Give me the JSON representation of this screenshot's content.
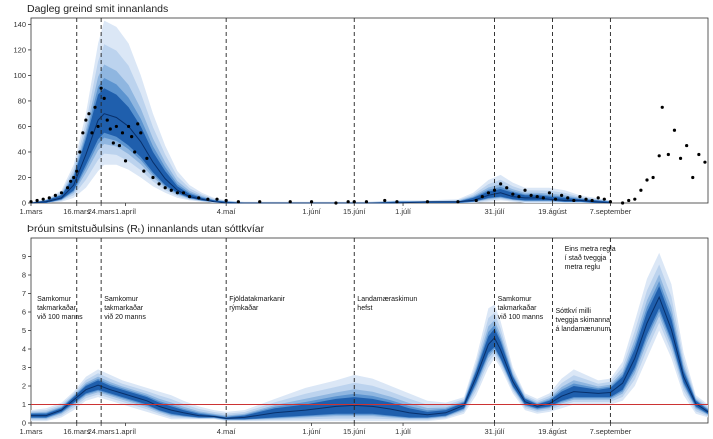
{
  "colors": {
    "band_outer": "#dbe7f6",
    "band_2": "#bcd3ee",
    "band_3": "#8fb6e0",
    "band_4": "#5b93cf",
    "band_inner": "#1f5fad",
    "median": "#08306b",
    "points": "#000000",
    "reference_line": "#cc3333",
    "event_lines": "#222222"
  },
  "chart_data": [
    {
      "type": "area",
      "title": "Dagleg greind smit innanlands",
      "xlabel": "",
      "ylabel": "",
      "ylim": [
        0,
        145
      ],
      "yticks": [
        0,
        20,
        40,
        60,
        80,
        100,
        120,
        140
      ],
      "x_range_days": [
        0,
        222
      ],
      "xticks": [
        {
          "day": 0,
          "label": "1.mars"
        },
        {
          "day": 15,
          "label": "16.mars"
        },
        {
          "day": 23,
          "label": "24.mars"
        },
        {
          "day": 31,
          "label": "1.apríl"
        },
        {
          "day": 64,
          "label": "4.maí"
        },
        {
          "day": 92,
          "label": "1.júní"
        },
        {
          "day": 106,
          "label": "15.júní"
        },
        {
          "day": 122,
          "label": "1.júlí"
        },
        {
          "day": 152,
          "label": "31.júlí"
        },
        {
          "day": 171,
          "label": "19.ágúst"
        },
        {
          "day": 190,
          "label": "7.september"
        }
      ],
      "event_lines_days": [
        15,
        23,
        64,
        106,
        152,
        171,
        190
      ],
      "grid": false,
      "series": [
        {
          "quantiles": "5-95",
          "x": [
            0,
            5,
            10,
            14,
            18,
            22,
            24,
            28,
            32,
            36,
            40,
            44,
            48,
            52,
            56,
            60,
            64,
            70,
            80,
            90,
            100,
            110,
            120,
            130,
            140,
            145,
            150,
            154,
            158,
            162,
            166,
            170,
            175,
            180,
            185,
            190
          ],
          "lower": [
            0,
            0,
            1,
            4,
            12,
            25,
            30,
            30,
            26,
            20,
            13,
            8,
            4,
            2,
            1,
            0,
            0,
            0,
            0,
            0,
            0,
            0,
            0,
            0,
            0,
            0,
            1,
            2,
            1,
            0,
            0,
            0,
            0,
            0,
            0,
            0
          ],
          "upper": [
            1,
            3,
            10,
            30,
            70,
            125,
            143,
            138,
            125,
            100,
            70,
            45,
            25,
            14,
            8,
            4,
            2,
            1,
            1,
            1,
            1,
            1,
            2,
            2,
            3,
            8,
            18,
            22,
            16,
            12,
            12,
            12,
            10,
            6,
            4,
            2
          ]
        },
        {
          "quantiles": "25-75",
          "x": [
            0,
            5,
            10,
            14,
            18,
            22,
            24,
            28,
            32,
            36,
            40,
            44,
            48,
            52,
            56,
            60,
            64,
            70,
            80,
            90,
            100,
            110,
            120,
            130,
            140,
            145,
            150,
            154,
            158,
            162,
            166,
            170,
            175,
            180,
            185,
            190
          ],
          "lower": [
            0,
            0,
            3,
            10,
            30,
            50,
            55,
            52,
            45,
            36,
            24,
            14,
            8,
            4,
            2,
            1,
            0,
            0,
            0,
            0,
            0,
            0,
            0,
            0,
            0,
            1,
            4,
            5,
            3,
            2,
            2,
            2,
            1,
            1,
            0,
            0
          ],
          "upper": [
            0,
            2,
            6,
            20,
            50,
            85,
            90,
            85,
            75,
            60,
            40,
            25,
            13,
            7,
            4,
            2,
            1,
            0,
            0,
            0,
            0,
            0,
            1,
            1,
            1,
            4,
            9,
            11,
            8,
            6,
            6,
            5,
            4,
            3,
            2,
            1
          ]
        },
        {
          "quantiles": "median",
          "x": [
            0,
            5,
            10,
            14,
            18,
            22,
            24,
            28,
            32,
            36,
            40,
            44,
            48,
            52,
            56,
            60,
            64,
            70,
            80,
            90,
            100,
            110,
            120,
            130,
            140,
            145,
            150,
            154,
            158,
            162,
            166,
            170,
            175,
            180,
            185,
            190
          ],
          "y": [
            0,
            1,
            4,
            14,
            38,
            65,
            70,
            67,
            60,
            48,
            32,
            19,
            10,
            5,
            3,
            1,
            0,
            0,
            0,
            0,
            0,
            0,
            0,
            1,
            1,
            2,
            6,
            8,
            5,
            4,
            4,
            3,
            2,
            2,
            1,
            0
          ]
        }
      ],
      "observed_points": {
        "x": [
          0,
          2,
          4,
          6,
          8,
          10,
          12,
          13,
          14,
          15,
          16,
          17,
          18,
          19,
          20,
          21,
          22,
          23,
          24,
          25,
          26,
          27,
          28,
          29,
          30,
          31,
          32,
          33,
          34,
          35,
          36,
          37,
          38,
          40,
          42,
          44,
          46,
          48,
          50,
          52,
          55,
          58,
          61,
          64,
          68,
          75,
          85,
          92,
          100,
          104,
          106,
          110,
          116,
          120,
          130,
          140,
          146,
          148,
          150,
          152,
          154,
          156,
          158,
          160,
          162,
          164,
          166,
          168,
          170,
          172,
          174,
          176,
          178,
          180,
          182,
          184,
          186,
          188,
          190,
          194,
          196,
          198,
          200,
          202,
          204,
          206,
          207,
          209,
          211,
          213,
          215,
          217,
          219,
          221
        ],
        "y": [
          1,
          2,
          3,
          4,
          6,
          8,
          12,
          17,
          20,
          25,
          40,
          55,
          65,
          70,
          55,
          75,
          60,
          90,
          82,
          65,
          58,
          47,
          60,
          45,
          55,
          33,
          60,
          52,
          40,
          62,
          55,
          25,
          35,
          20,
          15,
          12,
          10,
          8,
          8,
          5,
          4,
          3,
          3,
          2,
          1,
          1,
          1,
          1,
          0,
          1,
          1,
          1,
          2,
          1,
          1,
          1,
          2,
          5,
          8,
          10,
          15,
          12,
          7,
          5,
          10,
          6,
          5,
          4,
          8,
          3,
          6,
          4,
          2,
          5,
          3,
          2,
          4,
          3,
          1,
          0,
          2,
          3,
          10,
          18,
          20,
          37,
          75,
          38,
          57,
          35,
          45,
          20,
          38,
          32
        ]
      }
    },
    {
      "type": "area",
      "title": "Þróun smitstuðulsins (Rₜ) innanlands utan sóttkvíar",
      "xlabel": "",
      "ylabel": "",
      "ylim": [
        0,
        10
      ],
      "yticks": [
        0,
        1,
        2,
        3,
        4,
        5,
        6,
        7,
        8,
        9
      ],
      "x_range_days": [
        0,
        222
      ],
      "xticks": [
        {
          "day": 0,
          "label": "1.mars"
        },
        {
          "day": 15,
          "label": "16.mars"
        },
        {
          "day": 23,
          "label": "24.mars"
        },
        {
          "day": 31,
          "label": "1.apríl"
        },
        {
          "day": 64,
          "label": "4.maí"
        },
        {
          "day": 92,
          "label": "1.júní"
        },
        {
          "day": 106,
          "label": "15.júní"
        },
        {
          "day": 122,
          "label": "1.júlí"
        },
        {
          "day": 152,
          "label": "31.júlí"
        },
        {
          "day": 171,
          "label": "19.ágúst"
        },
        {
          "day": 190,
          "label": "7.september"
        }
      ],
      "reference_line_y": 1,
      "event_lines_days": [
        15,
        23,
        64,
        106,
        152,
        171,
        190
      ],
      "grid": false,
      "series": [
        {
          "quantiles": "5-95",
          "x": [
            0,
            5,
            10,
            14,
            18,
            22,
            26,
            30,
            34,
            38,
            42,
            46,
            50,
            55,
            60,
            64,
            70,
            80,
            90,
            100,
            106,
            112,
            118,
            124,
            130,
            136,
            142,
            146,
            150,
            152,
            154,
            158,
            162,
            166,
            170,
            174,
            178,
            182,
            186,
            190,
            194,
            198,
            202,
            206,
            210,
            214,
            218,
            222
          ],
          "lower": [
            0.1,
            0.1,
            0.3,
            0.7,
            1.2,
            1.4,
            1.2,
            1.0,
            0.8,
            0.6,
            0.4,
            0.2,
            0.2,
            0.2,
            0.2,
            0.1,
            0.1,
            0.1,
            0.1,
            0.1,
            0.1,
            0.1,
            0.1,
            0.1,
            0.1,
            0.2,
            0.5,
            1.5,
            3.0,
            3.5,
            3.0,
            1.6,
            0.7,
            0.5,
            0.6,
            0.8,
            1.0,
            1.0,
            1.0,
            1.0,
            1.2,
            2.0,
            3.5,
            5.0,
            3.5,
            1.5,
            0.5,
            0.3
          ],
          "upper": [
            0.7,
            0.8,
            1.1,
            1.7,
            2.5,
            2.9,
            2.6,
            2.3,
            2.1,
            1.9,
            1.7,
            1.5,
            1.2,
            0.9,
            0.7,
            0.6,
            0.7,
            1.3,
            1.9,
            2.3,
            2.6,
            2.4,
            2.0,
            1.6,
            1.2,
            1.1,
            1.4,
            3.5,
            6.2,
            6.4,
            5.5,
            3.0,
            1.6,
            1.3,
            1.6,
            2.4,
            2.9,
            2.6,
            2.3,
            2.4,
            3.3,
            5.5,
            7.8,
            9.2,
            7.5,
            3.8,
            1.5,
            1.0
          ]
        },
        {
          "quantiles": "25-75",
          "x": [
            0,
            5,
            10,
            14,
            18,
            22,
            26,
            30,
            34,
            38,
            42,
            46,
            50,
            55,
            60,
            64,
            70,
            80,
            90,
            100,
            106,
            112,
            118,
            124,
            130,
            136,
            142,
            146,
            150,
            152,
            154,
            158,
            162,
            166,
            170,
            174,
            178,
            182,
            186,
            190,
            194,
            198,
            202,
            206,
            210,
            214,
            218,
            222
          ],
          "lower": [
            0.3,
            0.3,
            0.6,
            1.1,
            1.6,
            1.8,
            1.6,
            1.4,
            1.2,
            1.0,
            0.7,
            0.5,
            0.4,
            0.3,
            0.3,
            0.2,
            0.2,
            0.3,
            0.4,
            0.5,
            0.5,
            0.5,
            0.4,
            0.3,
            0.3,
            0.4,
            0.8,
            2.2,
            3.8,
            4.1,
            3.5,
            2.0,
            1.0,
            0.8,
            0.9,
            1.2,
            1.4,
            1.4,
            1.4,
            1.4,
            1.8,
            3.0,
            4.8,
            6.2,
            4.5,
            2.2,
            0.9,
            0.5
          ],
          "upper": [
            0.5,
            0.5,
            0.8,
            1.4,
            2.0,
            2.3,
            2.0,
            1.8,
            1.6,
            1.4,
            1.1,
            0.9,
            0.7,
            0.5,
            0.4,
            0.3,
            0.4,
            0.8,
            1.0,
            1.3,
            1.4,
            1.3,
            1.1,
            0.8,
            0.6,
            0.7,
            1.1,
            2.8,
            4.7,
            5.1,
            4.4,
            2.5,
            1.3,
            1.0,
            1.2,
            1.7,
            2.0,
            1.9,
            1.8,
            1.9,
            2.5,
            4.0,
            6.0,
            7.4,
            5.6,
            2.8,
            1.2,
            0.7
          ]
        },
        {
          "quantiles": "median",
          "x": [
            0,
            5,
            10,
            14,
            18,
            22,
            26,
            30,
            34,
            38,
            42,
            46,
            50,
            55,
            60,
            64,
            70,
            80,
            90,
            100,
            106,
            112,
            118,
            124,
            130,
            136,
            142,
            146,
            150,
            152,
            154,
            158,
            162,
            166,
            170,
            174,
            178,
            182,
            186,
            190,
            194,
            198,
            202,
            206,
            210,
            214,
            218,
            222
          ],
          "y": [
            0.4,
            0.4,
            0.7,
            1.25,
            1.8,
            2.05,
            1.8,
            1.6,
            1.4,
            1.2,
            0.9,
            0.7,
            0.55,
            0.4,
            0.35,
            0.25,
            0.3,
            0.55,
            0.7,
            0.9,
            0.95,
            0.9,
            0.75,
            0.55,
            0.45,
            0.55,
            0.95,
            2.5,
            4.25,
            4.6,
            3.95,
            2.25,
            1.15,
            0.9,
            1.05,
            1.45,
            1.7,
            1.65,
            1.6,
            1.65,
            2.15,
            3.5,
            5.4,
            6.8,
            5.05,
            2.5,
            1.05,
            0.6
          ]
        }
      ],
      "annotations": [
        {
          "day": 2,
          "y": 6.6,
          "lines": [
            "Samkomur",
            "takmarkaðar",
            "við 100 manns"
          ]
        },
        {
          "day": 24,
          "y": 6.6,
          "lines": [
            "Samkomur",
            "takmarkaðar",
            "við 20 manns"
          ]
        },
        {
          "day": 65,
          "y": 6.6,
          "lines": [
            "Fjöldatakmarkanir",
            "rýmkaðar"
          ]
        },
        {
          "day": 107,
          "y": 6.6,
          "lines": [
            "Landamæraskimun",
            "hefst"
          ]
        },
        {
          "day": 153,
          "y": 6.6,
          "lines": [
            "Samkomur",
            "takmarkaðar",
            "við 100 manns"
          ]
        },
        {
          "day": 172,
          "y": 5.95,
          "lines": [
            "Sóttkví milli",
            "tveggja skimanna",
            "á landamærunum"
          ]
        },
        {
          "day": 175,
          "y": 9.3,
          "lines": [
            "Eins metra regla",
            "í stað tveggja",
            "metra reglu"
          ]
        }
      ]
    }
  ]
}
